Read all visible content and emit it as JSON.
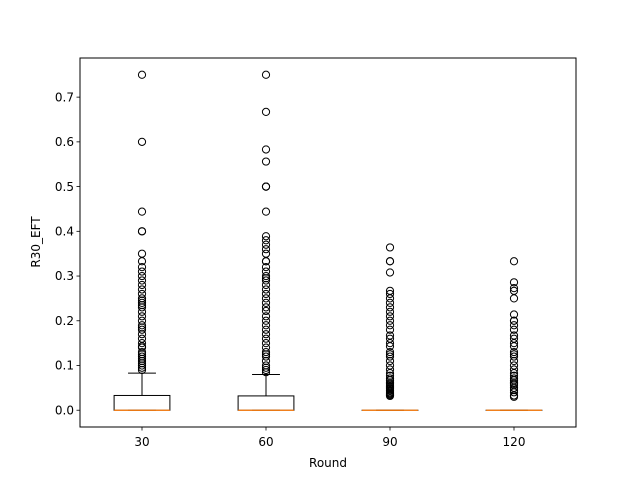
{
  "chart_data": {
    "type": "box",
    "title": "",
    "xlabel": "Round",
    "ylabel": "R30_EFT",
    "categories": [
      "30",
      "60",
      "90",
      "120"
    ],
    "ylim": [
      -0.0375,
      0.7875
    ],
    "yticks": [
      0.0,
      0.1,
      0.2,
      0.3,
      0.4,
      0.5,
      0.6,
      0.7
    ],
    "ytick_labels": [
      "0.0",
      "0.1",
      "0.2",
      "0.3",
      "0.4",
      "0.5",
      "0.6",
      "0.7"
    ],
    "grid": false,
    "box_color": "#000000",
    "median_color": "#ff7f0e",
    "boxes": [
      {
        "category": "30",
        "whisker_low": 0.0,
        "q1": 0.0,
        "median": 0.0,
        "q3": 0.033,
        "whisker_high": 0.083,
        "fliers": [
          0.75,
          0.6,
          0.444,
          0.4,
          0.4,
          0.35,
          0.333,
          0.32,
          0.31,
          0.3,
          0.29,
          0.28,
          0.27,
          0.26,
          0.25,
          0.245,
          0.24,
          0.235,
          0.23,
          0.22,
          0.21,
          0.2,
          0.19,
          0.185,
          0.18,
          0.17,
          0.16,
          0.15,
          0.143,
          0.14,
          0.13,
          0.125,
          0.12,
          0.115,
          0.11,
          0.105,
          0.1,
          0.095,
          0.09
        ]
      },
      {
        "category": "60",
        "whisker_low": 0.0,
        "q1": 0.0,
        "median": 0.0,
        "q3": 0.032,
        "whisker_high": 0.08,
        "fliers": [
          0.75,
          0.667,
          0.583,
          0.556,
          0.5,
          0.5,
          0.5,
          0.444,
          0.389,
          0.38,
          0.37,
          0.36,
          0.35,
          0.333,
          0.333,
          0.32,
          0.31,
          0.3,
          0.295,
          0.29,
          0.28,
          0.27,
          0.26,
          0.25,
          0.24,
          0.23,
          0.222,
          0.21,
          0.2,
          0.19,
          0.18,
          0.17,
          0.16,
          0.15,
          0.14,
          0.13,
          0.125,
          0.12,
          0.11,
          0.1,
          0.095,
          0.09,
          0.085
        ]
      },
      {
        "category": "90",
        "whisker_low": 0.0,
        "q1": 0.0,
        "median": 0.0,
        "q3": 0.0,
        "whisker_high": 0.0,
        "fliers": [
          0.364,
          0.333,
          0.333,
          0.308,
          0.267,
          0.26,
          0.25,
          0.24,
          0.23,
          0.22,
          0.21,
          0.2,
          0.19,
          0.18,
          0.167,
          0.16,
          0.15,
          0.143,
          0.13,
          0.125,
          0.12,
          0.11,
          0.1,
          0.091,
          0.083,
          0.077,
          0.071,
          0.067,
          0.062,
          0.059,
          0.056,
          0.053,
          0.05,
          0.048,
          0.045,
          0.043,
          0.04,
          0.038,
          0.036,
          0.034,
          0.032
        ]
      },
      {
        "category": "120",
        "whisker_low": 0.0,
        "q1": 0.0,
        "median": 0.0,
        "q3": 0.0,
        "whisker_high": 0.0,
        "fliers": [
          0.333,
          0.286,
          0.273,
          0.267,
          0.25,
          0.214,
          0.2,
          0.2,
          0.19,
          0.18,
          0.167,
          0.16,
          0.15,
          0.143,
          0.13,
          0.125,
          0.12,
          0.11,
          0.1,
          0.091,
          0.083,
          0.077,
          0.071,
          0.067,
          0.062,
          0.059,
          0.056,
          0.05,
          0.045,
          0.04,
          0.033,
          0.03
        ]
      }
    ]
  }
}
